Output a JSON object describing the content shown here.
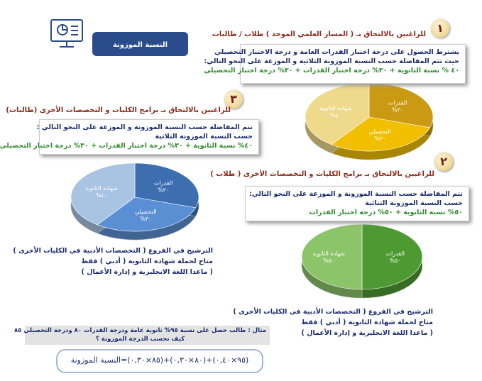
{
  "header": {
    "title": "النسبة الموزونة"
  },
  "sections": [
    {
      "number": "١",
      "heading": "للراغبين بالالتحاق بـ ( المسار العلمي الموحد ) طلاب / طالبات",
      "lines": [
        "يشترط الحصول على درجة اختبار القدرات العامة و درجة الاختبار التحصيلي",
        "حيث تتم المفاضلة حسب النسبة الموزونة الثلاثية و الموزعة على النحو التالي:",
        "٤٠ % نسبة الثانوية + ٣٠% درجة اختبار القدرات + ٣٠% درجة اختبار التحصيلي"
      ]
    },
    {
      "number": "٢",
      "heading": "للراغبين بالالتحاق بـ برامج الكليات و التخصصات الأخرى ( طلاب )",
      "lines": [
        "تتم المفاضلة حسب النسبة الموزونة و الموزعة على النحو التالي:",
        "حسب النسبة الموزونة الثنائية",
        "٥٠% نسبة الثانوية + ٥٠% درجة اختبار القدرات"
      ],
      "note": [
        "الترشيح في الفروع ( التخصصات الأدبية في الكليات الأخرى )",
        "متاح لحملة شهادة الثانوية ( أدبي ) فقط",
        "( ماعدا اللغة الانجليزية و إدارة الأعمال )"
      ]
    },
    {
      "number": "٣",
      "heading": "للراغبين بالالتحاق بـ برامج الكليات و التخصصات الأخرى (طالبات)",
      "lines": [
        "تتم المفاضلة حسب النسبة الموزونة و الموزعة على النحو التالي :",
        "حسب النسبة الموزونة الثلاثية",
        "٤٠% نسبة الثانوية + ٣٠% درجة اختبار القدرات + ٣٠% درجة اختبار التحصيلي"
      ],
      "note": [
        "الترشيح في الفروع ( التخصصات الأدبية في الكليات الأخرى )",
        "متاح لحملة شهادة الثانوية ( أدبي ) فقط",
        "( ماعدا اللغة الانجليزية و إدارة الأعمال )"
      ]
    }
  ],
  "example": {
    "lines": [
      "مثال : طالب حصل على نسبة ٩٥% ثانوية عامة ودرجة القدرات ٨٠ ودرجة التحصيلي ٨٥",
      "كيف تحسب الدرجة الموزونة ؟"
    ],
    "formula": "(٩٥×٠,٤٠)+(٨٠×٠,٣٠)+(٨٥×٠,٣٠)=النسبة الموزونة"
  },
  "chart_data": [
    {
      "type": "pie",
      "categories": [
        "القدرات",
        "التحصيلي",
        "شهادة الثانوية"
      ],
      "values": [
        30,
        30,
        40
      ],
      "value_labels": [
        "%٣٠",
        "%٣٠",
        "%٤٠"
      ],
      "colors": [
        "#c99a12",
        "#f2bf00",
        "#efd98a"
      ]
    },
    {
      "type": "pie",
      "categories": [
        "القدرات",
        "شهادة الثانوية"
      ],
      "values": [
        50,
        50
      ],
      "value_labels": [
        "%٥٠",
        "%٥٠"
      ],
      "colors": [
        "#4e9a32",
        "#8cc46a"
      ]
    },
    {
      "type": "pie",
      "categories": [
        "القدرات",
        "التحصيلي",
        "شهادة الثانوية"
      ],
      "values": [
        30,
        30,
        40
      ],
      "value_labels": [
        "%٣٠",
        "%٣٠",
        "%٤٠"
      ],
      "colors": [
        "#3d6fb0",
        "#5b8fd4",
        "#a9c3e3"
      ]
    }
  ]
}
